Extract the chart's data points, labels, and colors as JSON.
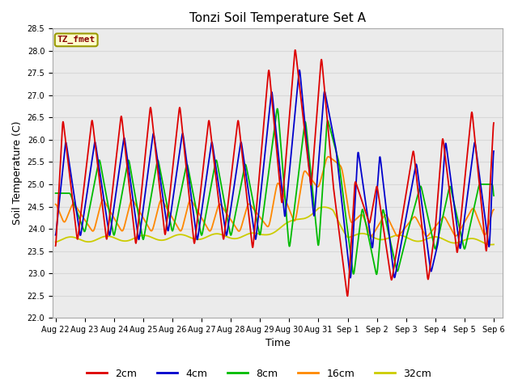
{
  "title": "Tonzi Soil Temperature Set A",
  "xlabel": "Time",
  "ylabel": "Soil Temperature (C)",
  "ylim": [
    22.0,
    28.5
  ],
  "legend_labels": [
    "2cm",
    "4cm",
    "8cm",
    "16cm",
    "32cm"
  ],
  "legend_colors": [
    "#dd0000",
    "#0000cc",
    "#00bb00",
    "#ff8800",
    "#cccc00"
  ],
  "annotation_text": "TZ_fmet",
  "annotation_bg": "#ffffcc",
  "annotation_border": "#999900",
  "annotation_text_color": "#880000",
  "grid_color": "#d8d8d8",
  "bg_color": "#ebebeb",
  "yticks": [
    22.0,
    22.5,
    23.0,
    23.5,
    24.0,
    24.5,
    25.0,
    25.5,
    26.0,
    26.5,
    27.0,
    27.5,
    28.0,
    28.5
  ],
  "tick_labels": [
    "Aug 22",
    "Aug 23",
    "Aug 24",
    "Aug 25",
    "Aug 26",
    "Aug 27",
    "Aug 28",
    "Aug 29",
    "Aug 30",
    "Aug 31",
    "Sep 1",
    "Sep 2",
    "Sep 3",
    "Sep 4",
    "Sep 5",
    "Sep 6"
  ],
  "tick_positions": [
    0,
    1,
    2,
    3,
    4,
    5,
    6,
    7,
    8,
    9,
    10,
    11,
    12,
    13,
    14,
    15
  ]
}
